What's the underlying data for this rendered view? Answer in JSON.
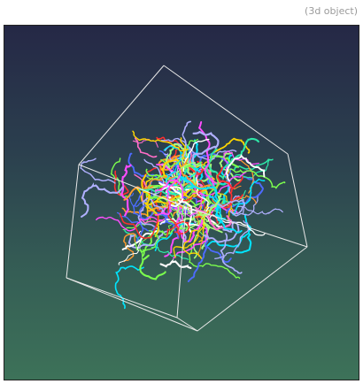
{
  "header": {
    "caption": "(3d object)"
  },
  "viewer": {
    "cube_edge_color": "#e8e8e8",
    "strand_colors": [
      "#ff3030",
      "#ffd700",
      "#00e5ff",
      "#7cff4d",
      "#ff4dff",
      "#4d6bff",
      "#ffffff",
      "#ff9a2e",
      "#a6ff7a",
      "#2ee8a8",
      "#ff6ec7",
      "#b0b0ff"
    ]
  }
}
